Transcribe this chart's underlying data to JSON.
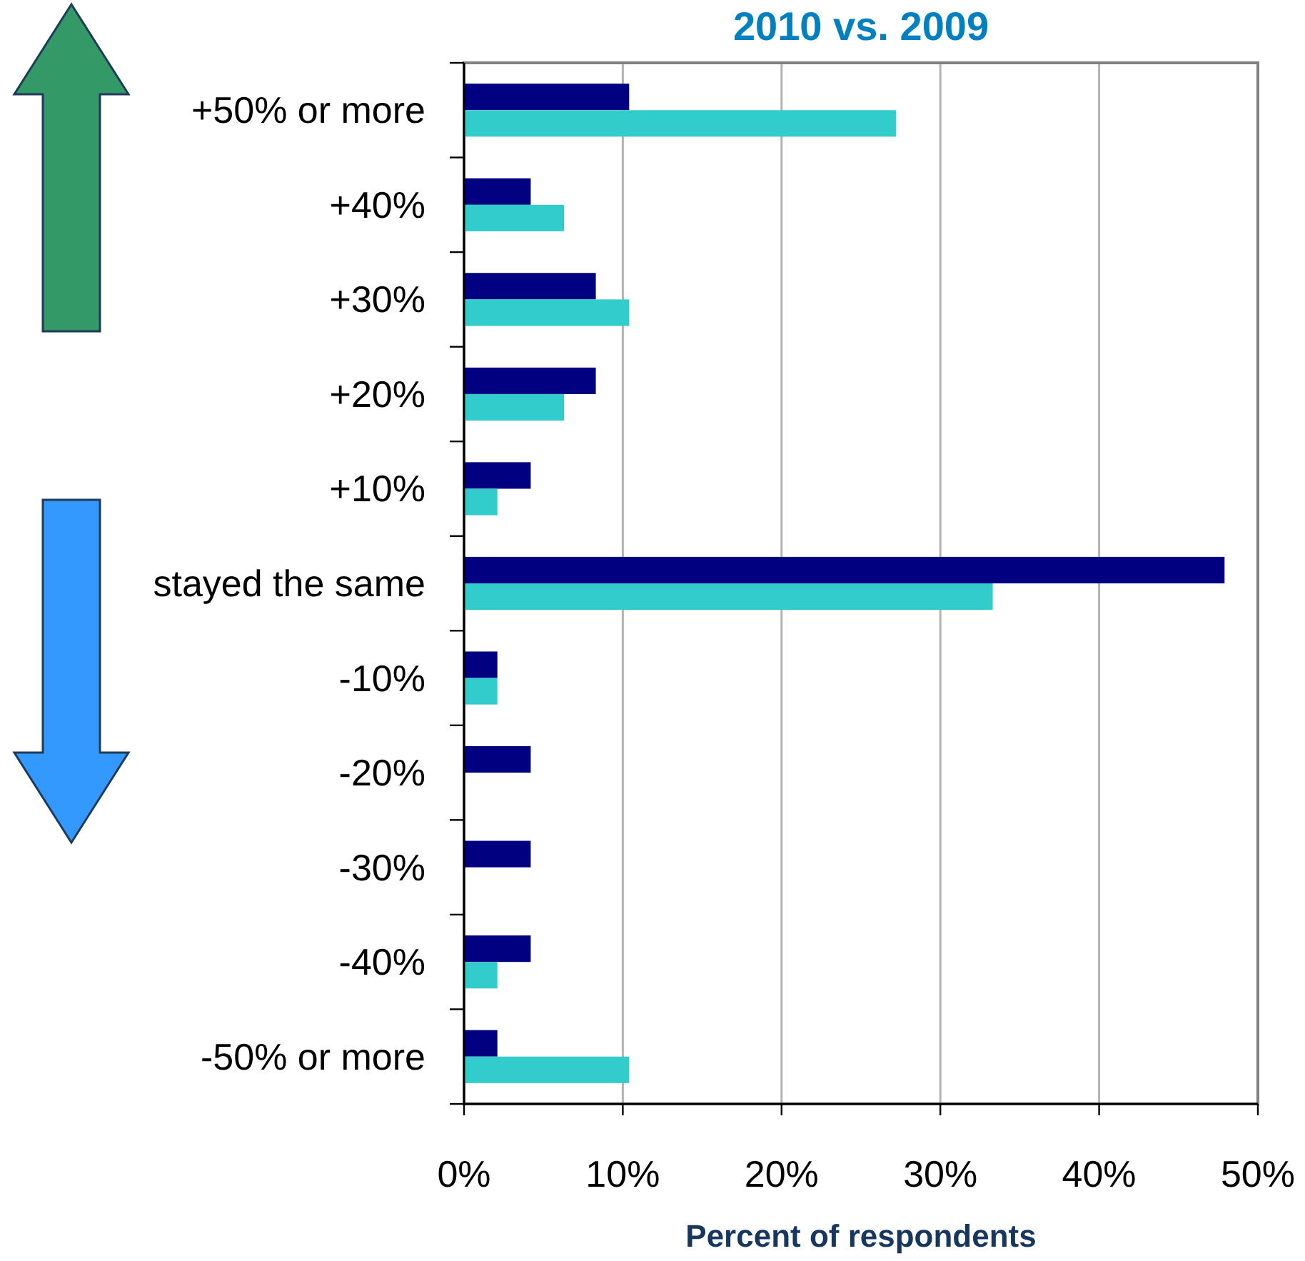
{
  "chart_data": {
    "type": "bar",
    "orientation": "horizontal",
    "title": "2010 vs. 2009",
    "xlabel": "Percent of respondents",
    "categories": [
      "+50% or more",
      "+40%",
      "+30%",
      "+20%",
      "+10%",
      "stayed the same",
      "-10%",
      "-20%",
      "-30%",
      "-40%",
      "-50% or more"
    ],
    "series": [
      {
        "color": "#000080",
        "values": [
          10.4,
          4.2,
          8.3,
          8.3,
          4.2,
          47.9,
          2.1,
          4.2,
          4.2,
          4.2,
          2.1
        ]
      },
      {
        "color": "#33cccc",
        "values": [
          27.2,
          6.3,
          10.4,
          6.3,
          2.1,
          33.3,
          2.1,
          0,
          0,
          2.1,
          10.4
        ]
      }
    ],
    "xlim": [
      0,
      50
    ],
    "xticks": [
      {
        "value": 0,
        "label": "0%"
      },
      {
        "value": 10,
        "label": "10%"
      },
      {
        "value": 20,
        "label": "20%"
      },
      {
        "value": 30,
        "label": "30%"
      },
      {
        "value": 40,
        "label": "40%"
      },
      {
        "value": 50,
        "label": "50%"
      }
    ],
    "grid": "x"
  }
}
